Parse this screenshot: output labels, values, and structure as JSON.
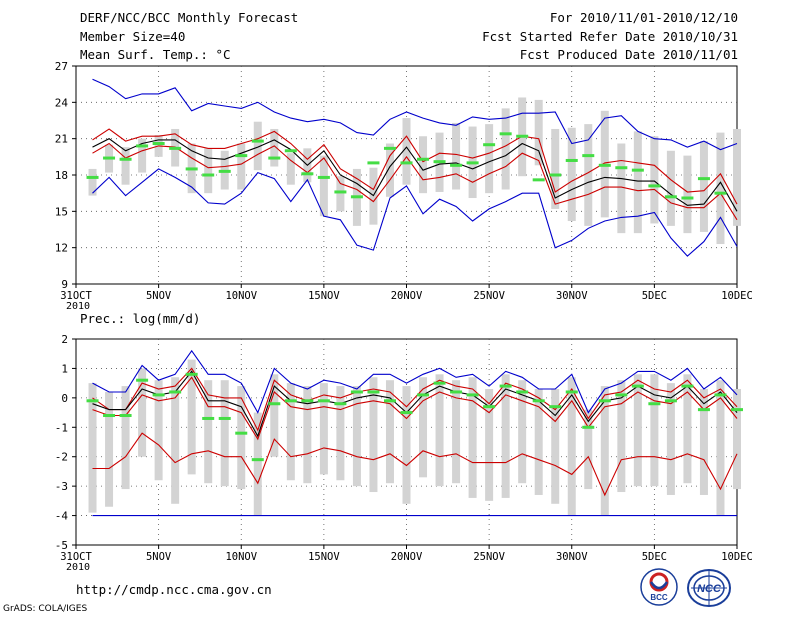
{
  "header": {
    "title": "DERF/NCC/BCC Monthly Forecast",
    "member_size": "Member Size=40",
    "variable": "Mean Surf. Temp.: °C",
    "period": "For 2010/11/01-2010/12/10",
    "fcst_started": "Fcst Started Refer Date 2010/10/31",
    "fcst_produced": "Fcst Produced Date 2010/11/01"
  },
  "footer": {
    "url": "http://cmdp.ncc.cma.gov.cn",
    "credit": "GrADS: COLA/IGES",
    "logo_left": "BCC",
    "logo_right": "NCC"
  },
  "colors": {
    "max": "#0000cc",
    "min": "#0000cc",
    "upper": "#cc0000",
    "lower": "#cc0000",
    "mean": "#000000",
    "obs": "#44dd44",
    "bar": "#d3d3d3",
    "grid": "#555555"
  },
  "chart_data": [
    {
      "type": "line",
      "title": "Mean Surf. Temp.: °C",
      "x_ticks": [
        {
          "day": 0,
          "label": "31OCT",
          "sublabel": "2010"
        },
        {
          "day": 5,
          "label": "5NOV"
        },
        {
          "day": 10,
          "label": "10NOV"
        },
        {
          "day": 15,
          "label": "15NOV"
        },
        {
          "day": 20,
          "label": "20NOV"
        },
        {
          "day": 25,
          "label": "25NOV"
        },
        {
          "day": 30,
          "label": "30NOV"
        },
        {
          "day": 35,
          "label": "5DEC"
        },
        {
          "day": 40,
          "label": "10DEC"
        }
      ],
      "xlim": [
        0,
        40
      ],
      "ylim": [
        9,
        27
      ],
      "yticks": [
        9,
        12,
        15,
        18,
        21,
        24,
        27
      ],
      "x_days": [
        1,
        2,
        3,
        4,
        5,
        6,
        7,
        8,
        9,
        10,
        11,
        12,
        13,
        14,
        15,
        16,
        17,
        18,
        19,
        20,
        21,
        22,
        23,
        24,
        25,
        26,
        27,
        28,
        29,
        30,
        31,
        32,
        33,
        34,
        35,
        36,
        37,
        38,
        39,
        40
      ],
      "series": [
        {
          "name": "max",
          "values": [
            25.9,
            25.3,
            24.3,
            24.7,
            24.7,
            25.2,
            23.3,
            23.9,
            23.7,
            23.5,
            24.0,
            23.2,
            22.7,
            22.4,
            22.6,
            22.3,
            21.5,
            21.3,
            22.6,
            23.2,
            22.7,
            22.3,
            22.1,
            22.8,
            22.6,
            22.7,
            23.1,
            23.1,
            23.2,
            20.6,
            20.9,
            22.7,
            22.9,
            21.6,
            21.0,
            20.9,
            20.3,
            20.8,
            20.1,
            20.6
          ]
        },
        {
          "name": "upper",
          "values": [
            20.9,
            21.8,
            20.8,
            21.2,
            21.2,
            21.4,
            20.5,
            20.2,
            20.2,
            20.6,
            21.0,
            21.6,
            20.6,
            19.3,
            20.5,
            18.5,
            17.7,
            16.8,
            19.6,
            21.2,
            19.1,
            19.8,
            19.7,
            19.4,
            19.8,
            20.4,
            21.2,
            21.0,
            16.6,
            17.5,
            18.2,
            19.0,
            19.2,
            19.0,
            18.8,
            17.6,
            16.6,
            16.7,
            18.1,
            15.6
          ]
        },
        {
          "name": "mean",
          "values": [
            20.3,
            21.0,
            20.0,
            20.6,
            20.9,
            20.9,
            20.0,
            19.4,
            19.3,
            19.8,
            20.3,
            20.9,
            20.1,
            18.8,
            20.0,
            18.0,
            17.3,
            16.3,
            18.7,
            20.3,
            18.4,
            18.9,
            19.0,
            18.5,
            19.1,
            19.6,
            20.6,
            20.0,
            16.1,
            16.8,
            17.4,
            17.8,
            17.7,
            17.5,
            17.5,
            16.4,
            15.5,
            15.6,
            17.4,
            15.0
          ]
        },
        {
          "name": "lower",
          "values": [
            19.8,
            20.6,
            19.4,
            20.0,
            20.4,
            20.3,
            19.4,
            18.6,
            18.7,
            18.9,
            19.7,
            20.4,
            19.2,
            18.2,
            19.4,
            17.3,
            16.8,
            15.8,
            17.6,
            19.5,
            17.6,
            17.8,
            18.1,
            17.4,
            18.1,
            18.7,
            19.8,
            19.2,
            15.6,
            16.0,
            16.4,
            17.0,
            17.0,
            16.7,
            16.8,
            15.7,
            15.3,
            15.3,
            16.5,
            14.3
          ]
        },
        {
          "name": "min",
          "values": [
            16.5,
            17.8,
            16.3,
            17.4,
            18.5,
            17.8,
            17.0,
            15.7,
            15.6,
            16.5,
            18.2,
            17.7,
            15.8,
            17.6,
            14.6,
            14.3,
            12.2,
            11.8,
            16.1,
            17.1,
            14.8,
            16.0,
            15.4,
            14.2,
            15.2,
            15.8,
            16.5,
            16.5,
            12.0,
            12.6,
            13.6,
            14.2,
            14.5,
            14.6,
            14.9,
            12.8,
            11.3,
            12.5,
            14.5,
            12.1
          ]
        },
        {
          "name": "obs",
          "values": [
            17.8,
            19.4,
            19.3,
            20.4,
            20.6,
            20.2,
            18.5,
            18.0,
            18.3,
            19.6,
            20.8,
            19.4,
            20.0,
            18.1,
            17.8,
            16.6,
            16.2,
            19.0,
            20.2,
            19.0,
            19.3,
            19.1,
            18.8,
            19.0,
            20.5,
            21.4,
            21.2,
            17.6,
            18.0,
            19.2,
            19.6,
            18.8,
            18.6,
            18.4,
            17.1,
            16.2,
            16.1,
            17.7,
            16.5,
            null
          ]
        }
      ],
      "bars": {
        "low": [
          16.3,
          18.2,
          17.2,
          18.2,
          19.5,
          18.7,
          16.5,
          16.5,
          16.8,
          16.8,
          18.4,
          18.7,
          17.2,
          17.4,
          14.6,
          15.0,
          13.8,
          13.9,
          16.2,
          17.2,
          16.5,
          16.6,
          16.8,
          16.1,
          16.5,
          16.8,
          17.9,
          18.8,
          15.2,
          14.2,
          13.8,
          14.5,
          13.2,
          13.2,
          14.0,
          13.8,
          13.2,
          13.3,
          12.3,
          13.8
        ],
        "high": [
          18.5,
          20.5,
          20.3,
          21.0,
          21.3,
          21.8,
          20.6,
          20.2,
          20.0,
          20.6,
          22.4,
          21.8,
          19.8,
          20.2,
          19.6,
          17.9,
          18.5,
          18.6,
          20.6,
          22.7,
          21.2,
          21.5,
          22.3,
          22.0,
          22.2,
          23.5,
          24.4,
          24.2,
          21.8,
          21.9,
          22.2,
          23.3,
          20.6,
          21.6,
          21.2,
          20.0,
          19.6,
          20.8,
          21.5,
          21.8
        ]
      }
    },
    {
      "type": "line",
      "title": "Prec.: log(mm/d)",
      "x_ticks": [
        {
          "day": 0,
          "label": "31OCT",
          "sublabel": "2010"
        },
        {
          "day": 5,
          "label": "5NOV"
        },
        {
          "day": 10,
          "label": "10NOV"
        },
        {
          "day": 15,
          "label": "15NOV"
        },
        {
          "day": 20,
          "label": "20NOV"
        },
        {
          "day": 25,
          "label": "25NOV"
        },
        {
          "day": 30,
          "label": "30NOV"
        },
        {
          "day": 35,
          "label": "5DEC"
        },
        {
          "day": 40,
          "label": "10DEC"
        }
      ],
      "xlim": [
        0,
        40
      ],
      "ylim": [
        -5,
        2
      ],
      "yticks": [
        -5,
        -4,
        -3,
        -2,
        -1,
        0,
        1,
        2
      ],
      "x_days": [
        1,
        2,
        3,
        4,
        5,
        6,
        7,
        8,
        9,
        10,
        11,
        12,
        13,
        14,
        15,
        16,
        17,
        18,
        19,
        20,
        21,
        22,
        23,
        24,
        25,
        26,
        27,
        28,
        29,
        30,
        31,
        32,
        33,
        34,
        35,
        36,
        37,
        38,
        39,
        40
      ],
      "series": [
        {
          "name": "max",
          "values": [
            0.5,
            0.2,
            0.2,
            1.1,
            0.6,
            0.8,
            1.6,
            0.8,
            0.8,
            0.5,
            -0.5,
            1.0,
            0.5,
            0.3,
            0.6,
            0.5,
            0.3,
            0.8,
            0.8,
            0.5,
            0.8,
            1.0,
            0.7,
            0.8,
            0.4,
            0.9,
            0.7,
            0.3,
            0.3,
            0.8,
            -0.5,
            0.3,
            0.5,
            0.9,
            0.9,
            0.6,
            1.0,
            0.3,
            0.7,
            0.1
          ]
        },
        {
          "name": "upper",
          "values": [
            0.0,
            -0.4,
            -0.4,
            0.5,
            0.3,
            0.4,
            1.0,
            0.1,
            0.0,
            0.0,
            -1.1,
            0.6,
            0.1,
            -0.1,
            0.1,
            0.0,
            0.2,
            0.3,
            0.2,
            -0.3,
            0.3,
            0.6,
            0.4,
            0.3,
            -0.2,
            0.5,
            0.3,
            0.0,
            -0.4,
            0.3,
            -0.7,
            0.1,
            0.2,
            0.6,
            0.3,
            0.2,
            0.6,
            0.0,
            0.3,
            -0.3
          ]
        },
        {
          "name": "mean",
          "values": [
            -0.2,
            -0.4,
            -0.4,
            0.3,
            0.1,
            0.2,
            0.9,
            -0.1,
            -0.1,
            -0.3,
            -1.3,
            0.4,
            -0.1,
            -0.2,
            -0.1,
            -0.2,
            0.0,
            0.1,
            0.0,
            -0.5,
            0.1,
            0.4,
            0.2,
            0.1,
            -0.3,
            0.3,
            0.1,
            -0.1,
            -0.6,
            0.1,
            -0.8,
            -0.1,
            0.0,
            0.4,
            0.1,
            0.0,
            0.4,
            -0.2,
            0.2,
            -0.5
          ]
        },
        {
          "name": "lower",
          "values": [
            -0.4,
            -0.6,
            -0.6,
            0.1,
            -0.1,
            0.0,
            0.7,
            -0.3,
            -0.3,
            -0.5,
            -1.4,
            0.2,
            -0.3,
            -0.4,
            -0.3,
            -0.4,
            -0.2,
            -0.1,
            -0.2,
            -0.7,
            -0.1,
            0.2,
            0.0,
            -0.1,
            -0.5,
            0.1,
            -0.1,
            -0.3,
            -0.8,
            -0.1,
            -1.0,
            -0.3,
            -0.2,
            0.2,
            -0.1,
            -0.2,
            0.2,
            -0.4,
            0.0,
            -0.7
          ]
        },
        {
          "name": "min",
          "values": [
            -2.4,
            -2.4,
            -2.0,
            -1.2,
            -1.6,
            -2.2,
            -1.9,
            -1.8,
            -2.0,
            -2.0,
            -2.9,
            -1.4,
            -2.0,
            -1.9,
            -1.7,
            -1.8,
            -2.0,
            -2.1,
            -1.9,
            -2.3,
            -1.8,
            -2.0,
            -1.9,
            -2.2,
            -2.2,
            -2.2,
            -1.9,
            -2.1,
            -2.3,
            -2.6,
            -2.0,
            -3.3,
            -2.1,
            -2.0,
            -2.0,
            -2.1,
            -1.9,
            -2.1,
            -3.1,
            -1.9
          ]
        },
        {
          "name": "obs",
          "values": [
            -0.1,
            -0.6,
            -0.6,
            0.6,
            0.1,
            0.2,
            0.8,
            -0.7,
            -0.7,
            -1.2,
            -2.1,
            -0.2,
            -0.1,
            -0.1,
            -0.1,
            -0.2,
            0.2,
            0.2,
            -0.1,
            -0.5,
            0.1,
            0.5,
            0.2,
            0.1,
            -0.3,
            0.4,
            0.2,
            -0.1,
            -0.3,
            0.2,
            -1.0,
            -0.1,
            0.1,
            0.4,
            -0.2,
            -0.1,
            0.4,
            -0.4,
            0.1,
            -0.4
          ]
        },
        {
          "name": "floor",
          "values": [
            -4,
            -4,
            -4,
            -4,
            -4,
            -4,
            -4,
            -4,
            -4,
            -4,
            -4,
            -4,
            -4,
            -4,
            -4,
            -4,
            -4,
            -4,
            -4,
            -4,
            -4,
            -4,
            -4,
            -4,
            -4,
            -4,
            -4,
            -4,
            -4,
            -4,
            -4,
            -4,
            -4,
            -4,
            -4,
            -4,
            -4,
            -4,
            -4,
            -4
          ]
        }
      ],
      "bars": {
        "low": [
          -3.9,
          -3.7,
          -3.1,
          -2.0,
          -2.8,
          -3.6,
          -2.6,
          -2.9,
          -3.0,
          -3.1,
          -4.0,
          -2.0,
          -2.8,
          -2.9,
          -2.6,
          -2.8,
          -3.0,
          -3.2,
          -2.9,
          -3.6,
          -2.7,
          -3.0,
          -2.9,
          -3.4,
          -3.5,
          -3.4,
          -2.9,
          -3.3,
          -3.6,
          -4.0,
          -3.1,
          -4.0,
          -3.2,
          -3.0,
          -3.0,
          -3.3,
          -2.9,
          -3.3,
          -4.0,
          -3.1
        ],
        "high": [
          0.5,
          0.2,
          0.4,
          1.0,
          0.6,
          0.7,
          1.3,
          0.6,
          0.6,
          0.4,
          -0.5,
          0.8,
          0.5,
          0.4,
          0.5,
          0.4,
          0.4,
          0.7,
          0.6,
          0.4,
          0.7,
          0.8,
          0.6,
          0.7,
          0.3,
          0.8,
          0.6,
          0.3,
          0.3,
          0.7,
          -0.4,
          0.4,
          0.6,
          0.8,
          0.8,
          0.5,
          0.8,
          0.3,
          0.6,
          0.3
        ]
      }
    }
  ]
}
